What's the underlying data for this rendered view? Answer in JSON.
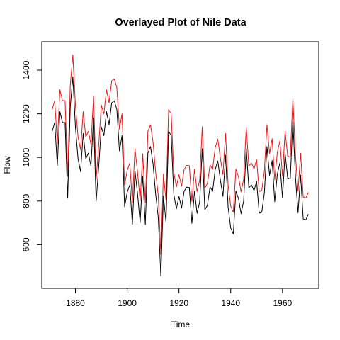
{
  "chart_data": {
    "type": "line",
    "title": "Overlayed Plot of Nile Data",
    "xlabel": "Time",
    "ylabel": "Flow",
    "xlim": [
      1867,
      1974
    ],
    "ylim": [
      400,
      1530
    ],
    "xticks": [
      1880,
      1900,
      1920,
      1940,
      1960
    ],
    "yticks": [
      600,
      800,
      1000,
      1200,
      1400
    ],
    "grid": false,
    "x_start": 1871,
    "series": [
      {
        "color": "#000000",
        "values": [
          1120,
          1160,
          963,
          1210,
          1160,
          1160,
          813,
          1230,
          1370,
          1140,
          995,
          935,
          1110,
          994,
          1020,
          960,
          1180,
          799,
          958,
          1140,
          1100,
          1210,
          1150,
          1250,
          1260,
          1220,
          1030,
          1100,
          774,
          840,
          874,
          694,
          940,
          833,
          701,
          916,
          692,
          1020,
          1050,
          969,
          831,
          726,
          456,
          824,
          702,
          1120,
          1100,
          832,
          764,
          821,
          768,
          845,
          864,
          862,
          698,
          845,
          744,
          796,
          1040,
          759,
          781,
          865,
          845,
          944,
          984,
          897,
          822,
          1010,
          771,
          676,
          649,
          846,
          812,
          742,
          801,
          1040,
          860,
          874,
          848,
          890,
          744,
          749,
          838,
          1050,
          918,
          986,
          797,
          923,
          975,
          815,
          1020,
          906,
          901,
          1170,
          912,
          746,
          919,
          718,
          714,
          740
        ]
      },
      {
        "color": "#e41a1c",
        "values": [
          1220,
          1260,
          1063,
          1310,
          1260,
          1260,
          913,
          1330,
          1470,
          1240,
          1095,
          1035,
          1210,
          1094,
          1120,
          1060,
          1280,
          899,
          1058,
          1240,
          1200,
          1310,
          1250,
          1350,
          1360,
          1320,
          1130,
          1200,
          874,
          940,
          974,
          794,
          1040,
          933,
          801,
          1016,
          792,
          1120,
          1150,
          1069,
          931,
          826,
          556,
          924,
          802,
          1220,
          1200,
          932,
          864,
          921,
          868,
          945,
          964,
          962,
          798,
          945,
          844,
          896,
          1140,
          859,
          881,
          965,
          945,
          1044,
          1084,
          997,
          922,
          1110,
          871,
          776,
          749,
          946,
          912,
          842,
          901,
          1140,
          960,
          974,
          948,
          990,
          844,
          849,
          938,
          1150,
          1018,
          1086,
          897,
          1023,
          1075,
          915,
          1120,
          1006,
          1001,
          1270,
          1012,
          846,
          1019,
          818,
          814,
          840
        ]
      }
    ]
  }
}
